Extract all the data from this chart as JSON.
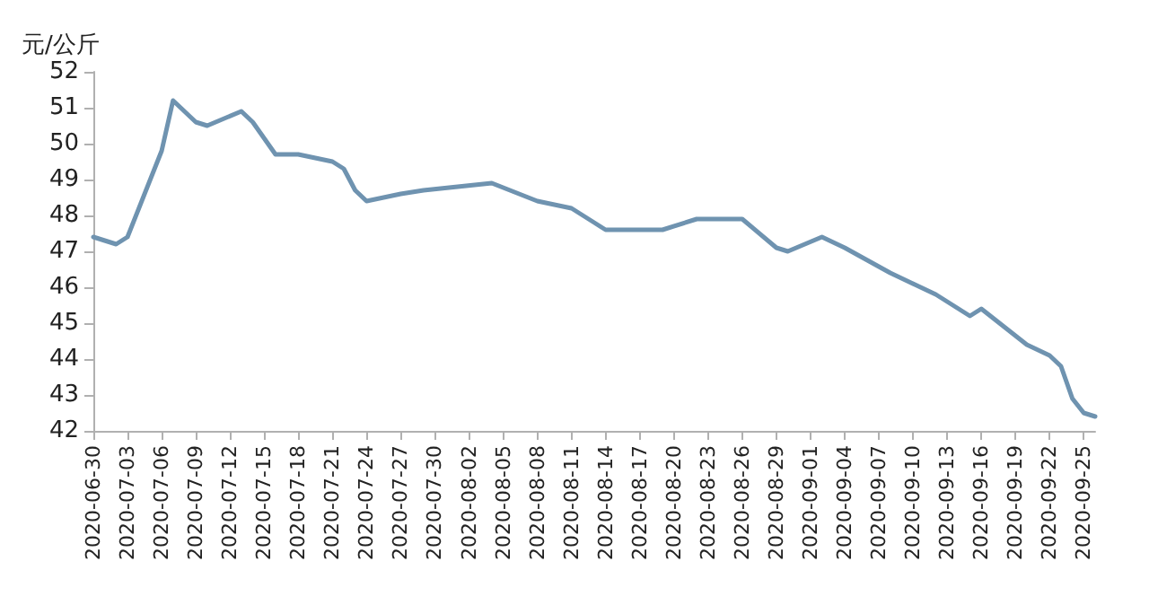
{
  "chart_data": {
    "type": "line",
    "ylabel": "元/公斤",
    "x": [
      "2020-06-30",
      "2020-07-02",
      "2020-07-03",
      "2020-07-06",
      "2020-07-07",
      "2020-07-09",
      "2020-07-10",
      "2020-07-13",
      "2020-07-14",
      "2020-07-16",
      "2020-07-18",
      "2020-07-21",
      "2020-07-22",
      "2020-07-23",
      "2020-07-24",
      "2020-07-27",
      "2020-07-29",
      "2020-08-01",
      "2020-08-04",
      "2020-08-08",
      "2020-08-11",
      "2020-08-13",
      "2020-08-14",
      "2020-08-19",
      "2020-08-22",
      "2020-08-26",
      "2020-08-29",
      "2020-08-30",
      "2020-09-02",
      "2020-09-04",
      "2020-09-08",
      "2020-09-12",
      "2020-09-15",
      "2020-09-16",
      "2020-09-18",
      "2020-09-20",
      "2020-09-22",
      "2020-09-23",
      "2020-09-24",
      "2020-09-25",
      "2020-09-26"
    ],
    "series": [
      {
        "color": "#6f93b0",
        "values": [
          47.4,
          47.2,
          47.4,
          49.8,
          51.2,
          50.6,
          50.5,
          50.9,
          50.6,
          49.7,
          49.7,
          49.5,
          49.3,
          48.7,
          48.4,
          48.6,
          48.7,
          48.8,
          48.9,
          48.4,
          48.2,
          47.8,
          47.6,
          47.6,
          47.9,
          47.9,
          47.1,
          47.0,
          47.4,
          47.1,
          46.4,
          45.8,
          45.2,
          45.4,
          44.9,
          44.4,
          44.1,
          43.8,
          42.9,
          42.5,
          42.4
        ]
      }
    ],
    "ylim": [
      42,
      52
    ],
    "yticks": [
      42,
      43,
      44,
      45,
      46,
      47,
      48,
      49,
      50,
      51,
      52
    ],
    "xlim": [
      "2020-06-30",
      "2020-09-26"
    ],
    "xticks": [
      "2020-06-30",
      "2020-07-03",
      "2020-07-06",
      "2020-07-09",
      "2020-07-12",
      "2020-07-15",
      "2020-07-18",
      "2020-07-21",
      "2020-07-24",
      "2020-07-27",
      "2020-07-30",
      "2020-08-02",
      "2020-08-05",
      "2020-08-08",
      "2020-08-11",
      "2020-08-14",
      "2020-08-17",
      "2020-08-20",
      "2020-08-23",
      "2020-08-26",
      "2020-08-29",
      "2020-09-01",
      "2020-09-04",
      "2020-09-07",
      "2020-09-10",
      "2020-09-13",
      "2020-09-16",
      "2020-09-19",
      "2020-09-22",
      "2020-09-25"
    ],
    "grid": false,
    "marker": "none",
    "line_style": "solid"
  }
}
